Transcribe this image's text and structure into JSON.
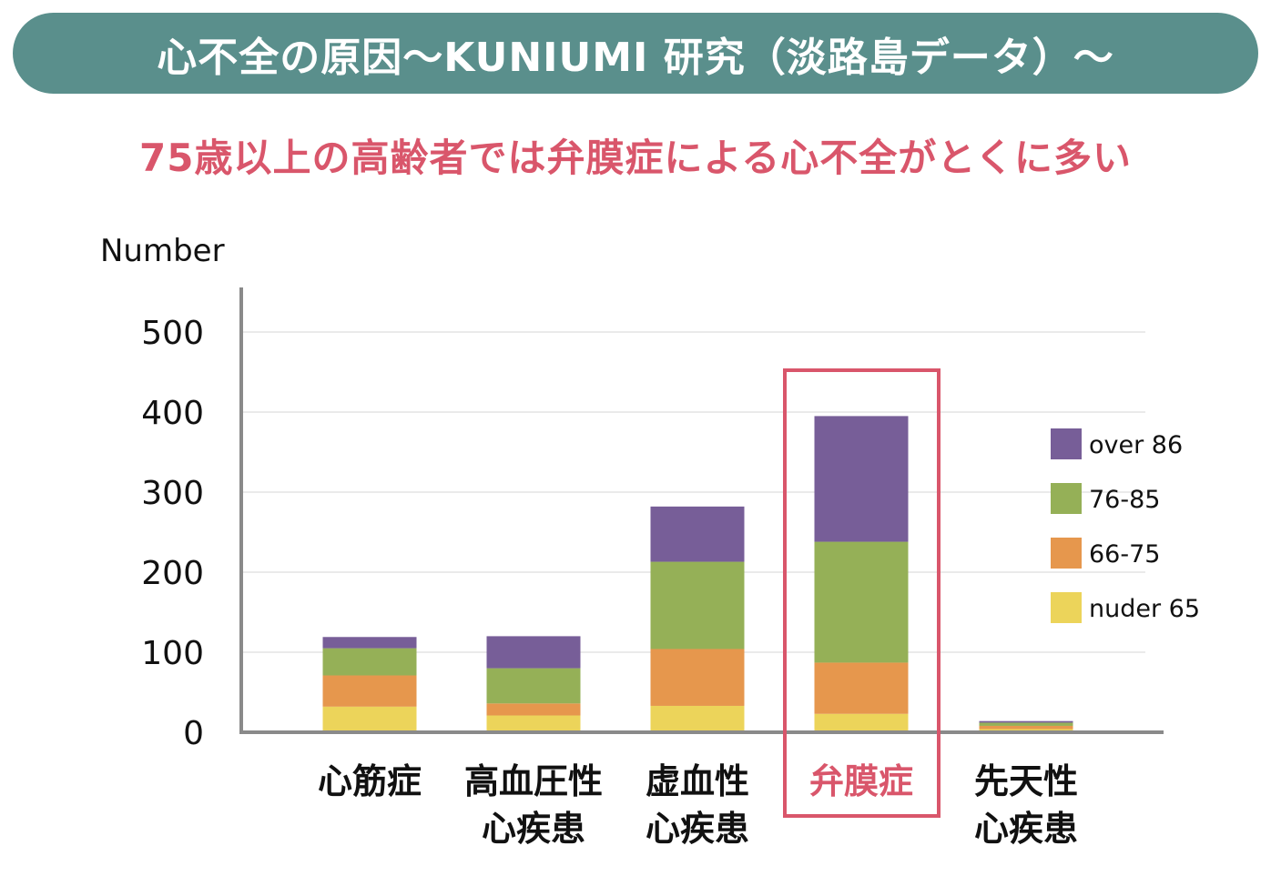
{
  "header": {
    "title": "心不全の原因〜KUNIUMI 研究（淡路島データ）〜"
  },
  "subtitle": "75歳以上の高齢者では弁膜症による心不全がとくに多い",
  "colors": {
    "banner_bg": "#5a8f8c",
    "highlight": "#d9566b",
    "over86": "#775e98",
    "age76_85": "#95b057",
    "age66_75": "#e6974d",
    "under65": "#ecd45a"
  },
  "chart_data": {
    "type": "bar",
    "stacked": true,
    "ylabel": "Number",
    "ylim": [
      0,
      500
    ],
    "yticks": [
      0,
      100,
      200,
      300,
      400,
      500
    ],
    "grid": true,
    "legend_position": "right",
    "highlighted_category": "弁膜症",
    "categories": [
      [
        "心筋症"
      ],
      [
        "高血圧性",
        "心疾患"
      ],
      [
        "虚血性",
        "心疾患"
      ],
      [
        "弁膜症"
      ],
      [
        "先天性",
        "心疾患"
      ]
    ],
    "series": [
      {
        "name": "nuder 65",
        "color": "#ecd45a",
        "values": [
          32,
          21,
          33,
          23,
          4
        ]
      },
      {
        "name": "66-75",
        "color": "#e6974d",
        "values": [
          39,
          15,
          71,
          64,
          4
        ]
      },
      {
        "name": "76-85",
        "color": "#95b057",
        "values": [
          34,
          44,
          109,
          151,
          4
        ]
      },
      {
        "name": "over 86",
        "color": "#775e98",
        "values": [
          14,
          40,
          69,
          157,
          2
        ]
      }
    ]
  }
}
